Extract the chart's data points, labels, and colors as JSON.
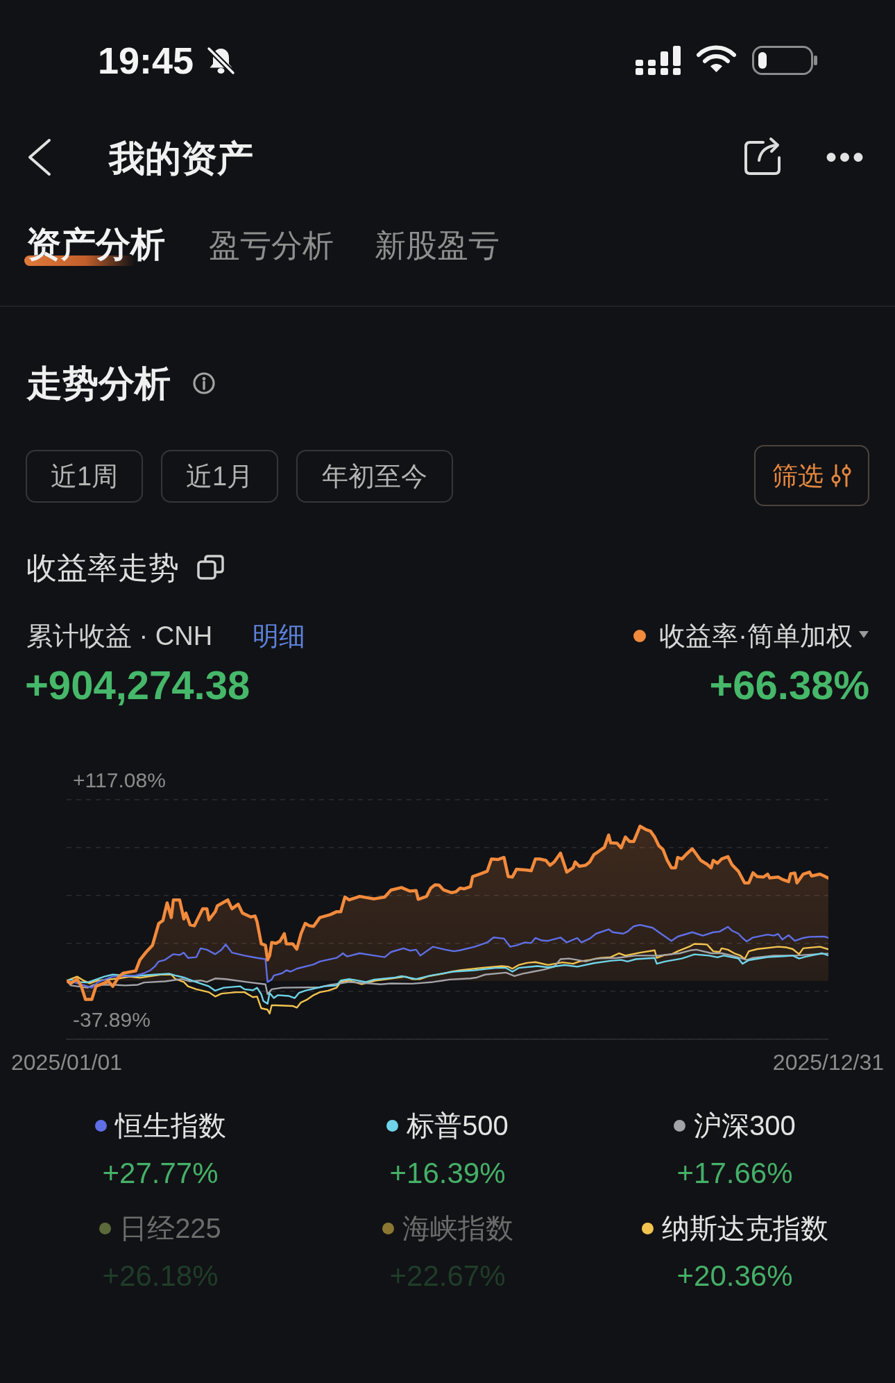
{
  "chart_data": {
    "type": "line",
    "title": "收益率走势",
    "annotations": [
      "19:45",
      "我的资产",
      "资产分析",
      "盈亏分析",
      "新股盈亏",
      "走势分析",
      "近1周",
      "近1月",
      "年初至今",
      "筛选",
      "累计收益 · CNH",
      "明细",
      "+904,274.38",
      "+66.38%",
      "+27.77%",
      "+16.39%",
      "+17.66%",
      "+26.18%",
      "+22.67%",
      "+20.36%"
    ],
    "legend": "bottom",
    "grid": "y",
    "xlim": [
      "2025-01-01",
      "2025-12-31"
    ],
    "xticks": [
      {
        "value": "2025-01-01",
        "label": "2025/01/01"
      },
      {
        "value": "2025-12-31",
        "label": "2025/12/31"
      }
    ],
    "ylim": [
      -37.89,
      117.08
    ],
    "yticks": [
      {
        "value": -37.89,
        "label": "-37.89%"
      },
      {
        "value": -6.9,
        "label": null
      },
      {
        "value": 24.1,
        "label": null
      },
      {
        "value": 55.09,
        "label": null
      },
      {
        "value": 86.09,
        "label": null
      },
      {
        "value": 117.08,
        "label": "+117.08%"
      }
    ],
    "series": [
      {
        "name": "收益率·简单加权",
        "type": "area",
        "color": "#f28a3c",
        "x": [
          "2025-01-01",
          "2025-01-03",
          "2025-01-06",
          "2025-01-08",
          "2025-01-10",
          "2025-01-13",
          "2025-01-15",
          "2025-01-21",
          "2025-01-23",
          "2025-01-26",
          "2025-01-28",
          "2025-02-03",
          "2025-02-05",
          "2025-02-08",
          "2025-02-11",
          "2025-02-14",
          "2025-02-16",
          "2025-02-18",
          "2025-02-20",
          "2025-02-21",
          "2025-02-24",
          "2025-02-26",
          "2025-02-27",
          "2025-03-01",
          "2025-03-03",
          "2025-03-07",
          "2025-03-09",
          "2025-03-10",
          "2025-03-13",
          "2025-03-14",
          "2025-03-19",
          "2025-03-21",
          "2025-03-24",
          "2025-03-26",
          "2025-03-30",
          "2025-04-01",
          "2025-04-02",
          "2025-04-04",
          "2025-04-06",
          "2025-04-07",
          "2025-04-08",
          "2025-04-09",
          "2025-04-11",
          "2025-04-13",
          "2025-04-15",
          "2025-04-16",
          "2025-04-19",
          "2025-04-21",
          "2025-04-23",
          "2025-04-25",
          "2025-04-27",
          "2025-04-29",
          "2025-05-02",
          "2025-05-07",
          "2025-05-10",
          "2025-05-12",
          "2025-05-14",
          "2025-05-16",
          "2025-05-21",
          "2025-05-28",
          "2025-06-02",
          "2025-06-05",
          "2025-06-10",
          "2025-06-14",
          "2025-06-17",
          "2025-06-18",
          "2025-06-22",
          "2025-06-24",
          "2025-06-26",
          "2025-06-28",
          "2025-06-30",
          "2025-07-04",
          "2025-07-06",
          "2025-07-08",
          "2025-07-10",
          "2025-07-13",
          "2025-07-14",
          "2025-07-18",
          "2025-07-21",
          "2025-07-23",
          "2025-07-26",
          "2025-07-29",
          "2025-07-31",
          "2025-08-02",
          "2025-08-04",
          "2025-08-09",
          "2025-08-11",
          "2025-08-13",
          "2025-08-15",
          "2025-08-18",
          "2025-08-20",
          "2025-08-22",
          "2025-08-25",
          "2025-08-28",
          "2025-08-31",
          "2025-09-01",
          "2025-09-03",
          "2025-09-06",
          "2025-09-08",
          "2025-09-10",
          "2025-09-12",
          "2025-09-15",
          "2025-09-17",
          "2025-09-18",
          "2025-09-21",
          "2025-09-23",
          "2025-09-25",
          "2025-09-27",
          "2025-09-29",
          "2025-10-02",
          "2025-10-05",
          "2025-10-07",
          "2025-10-09",
          "2025-10-11",
          "2025-10-13",
          "2025-10-15",
          "2025-10-17",
          "2025-10-19",
          "2025-10-20",
          "2025-10-22",
          "2025-10-24",
          "2025-10-27",
          "2025-10-29",
          "2025-10-31",
          "2025-11-03",
          "2025-11-05",
          "2025-11-06",
          "2025-11-08",
          "2025-11-10",
          "2025-11-13",
          "2025-11-15",
          "2025-11-18",
          "2025-11-21",
          "2025-11-23",
          "2025-11-25",
          "2025-11-27",
          "2025-11-30",
          "2025-12-02",
          "2025-12-03",
          "2025-12-07",
          "2025-12-09",
          "2025-12-12",
          "2025-12-13",
          "2025-12-15",
          "2025-12-16",
          "2025-12-19",
          "2025-12-22",
          "2025-12-23",
          "2025-12-27",
          "2025-12-29",
          "2025-12-31"
        ],
        "values": [
          0,
          -1.7,
          1.1,
          -3.6,
          -12.1,
          -12.1,
          -3.6,
          -0.4,
          -3.6,
          2.7,
          4.9,
          6.4,
          13.5,
          18.6,
          22.9,
          37.1,
          39.0,
          50.4,
          40.9,
          52.3,
          52.3,
          40.0,
          43.8,
          36.2,
          35.6,
          46.6,
          46.6,
          39.4,
          44.7,
          48.5,
          52.3,
          46.6,
          49.5,
          43.8,
          41.3,
          41.9,
          38.1,
          23.9,
          22.9,
          13.5,
          16.3,
          24.8,
          24.2,
          25.7,
          30.5,
          23.9,
          23.9,
          20.5,
          30.5,
          37.1,
          35.6,
          35.2,
          40.9,
          42.8,
          44.7,
          44.7,
          54.2,
          52.3,
          54.6,
          53.0,
          54.2,
          58.7,
          60.3,
          58.0,
          58.3,
          52.7,
          54.6,
          59.9,
          62.1,
          61.8,
          58.9,
          57.0,
          57.6,
          59.9,
          59.5,
          60.9,
          67.4,
          69.3,
          70.9,
          78.8,
          78.4,
          79.8,
          67.4,
          67.1,
          72.2,
          71.6,
          71.2,
          78.8,
          78.8,
          77.9,
          74.7,
          76.9,
          82.6,
          70.3,
          73.1,
          76.9,
          74.1,
          74.7,
          76.9,
          81.7,
          83.5,
          86.4,
          94.3,
          89.2,
          89.0,
          86.0,
          93.0,
          90.1,
          90.1,
          100.0,
          97.7,
          96.8,
          93.0,
          87.3,
          84.9,
          77.9,
          73.1,
          73.1,
          79.8,
          78.8,
          81.7,
          85.4,
          81.7,
          77.9,
          75.4,
          73.1,
          77.9,
          76.0,
          78.8,
          80.3,
          75.0,
          70.9,
          63.3,
          63.3,
          69.9,
          67.4,
          67.1,
          69.0,
          66.5,
          67.1,
          65.6,
          64.1,
          69.3,
          69.7,
          63.3,
          69.0,
          70.3,
          67.8,
          69.0,
          67.8,
          66.38
        ]
      },
      {
        "name": "恒生指数",
        "type": "line",
        "color": "#5f6fe6",
        "x": [
          "2025-01-01",
          "2025-01-04",
          "2025-01-13",
          "2025-01-16",
          "2025-01-23",
          "2025-02-03",
          "2025-02-07",
          "2025-02-10",
          "2025-02-12",
          "2025-02-14",
          "2025-02-17",
          "2025-02-21",
          "2025-02-24",
          "2025-02-26",
          "2025-02-28",
          "2025-03-04",
          "2025-03-06",
          "2025-03-09",
          "2025-03-13",
          "2025-03-16",
          "2025-03-18",
          "2025-03-21",
          "2025-03-27",
          "2025-04-02",
          "2025-04-06",
          "2025-04-07",
          "2025-04-09",
          "2025-04-10",
          "2025-04-14",
          "2025-04-16",
          "2025-04-18",
          "2025-04-21",
          "2025-04-29",
          "2025-05-02",
          "2025-05-10",
          "2025-05-12",
          "2025-05-13",
          "2025-05-15",
          "2025-05-21",
          "2025-05-28",
          "2025-06-02",
          "2025-06-05",
          "2025-06-11",
          "2025-06-14",
          "2025-06-17",
          "2025-06-19",
          "2025-06-25",
          "2025-07-01",
          "2025-07-05",
          "2025-07-08",
          "2025-07-15",
          "2025-07-21",
          "2025-07-24",
          "2025-07-29",
          "2025-08-01",
          "2025-08-04",
          "2025-08-08",
          "2025-08-11",
          "2025-08-13",
          "2025-08-16",
          "2025-08-19",
          "2025-08-25",
          "2025-08-28",
          "2025-09-02",
          "2025-09-04",
          "2025-09-08",
          "2025-09-11",
          "2025-09-13",
          "2025-09-17",
          "2025-09-19",
          "2025-09-24",
          "2025-09-26",
          "2025-09-29",
          "2025-10-02",
          "2025-10-05",
          "2025-10-08",
          "2025-10-11",
          "2025-10-15",
          "2025-10-17",
          "2025-10-20",
          "2025-10-27",
          "2025-10-29",
          "2025-11-01",
          "2025-11-06",
          "2025-11-09",
          "2025-11-13",
          "2025-11-15",
          "2025-11-18",
          "2025-11-20",
          "2025-11-22",
          "2025-11-25",
          "2025-12-02",
          "2025-12-05",
          "2025-12-07",
          "2025-12-09",
          "2025-12-12",
          "2025-12-15",
          "2025-12-19",
          "2025-12-22",
          "2025-12-29",
          "2025-12-31"
        ],
        "values": [
          0,
          -0.8,
          -4.5,
          -0.8,
          2.7,
          3.4,
          4.9,
          6.8,
          9.1,
          12.5,
          13.5,
          17.2,
          16.7,
          18.2,
          14.8,
          15.3,
          21.0,
          20.1,
          17.2,
          20.1,
          23.5,
          18.2,
          16.3,
          14.8,
          14.0,
          -0.8,
          0.8,
          3.4,
          4.9,
          6.8,
          5.9,
          7.8,
          10.6,
          12.5,
          14.8,
          16.7,
          17.8,
          15.7,
          17.8,
          16.3,
          15.3,
          18.6,
          21.0,
          19.5,
          20.1,
          16.3,
          22.0,
          20.1,
          19.1,
          19.7,
          22.0,
          24.8,
          28.0,
          27.3,
          22.0,
          22.9,
          24.8,
          24.4,
          27.7,
          26.1,
          25.8,
          28.0,
          24.8,
          27.7,
          24.8,
          27.3,
          30.5,
          31.4,
          33.3,
          31.4,
          30.5,
          31.8,
          35.2,
          36.2,
          35.2,
          34.3,
          31.4,
          27.7,
          25.8,
          28.6,
          31.4,
          30.5,
          29.2,
          31.4,
          31.8,
          34.9,
          32.4,
          30.5,
          27.7,
          25.4,
          28.0,
          29.9,
          29.2,
          30.3,
          26.7,
          29.5,
          25.8,
          27.7,
          28.4,
          28.6,
          27.77
        ]
      },
      {
        "name": "标普500",
        "type": "line",
        "color": "#6fd4e8",
        "x": [
          "2025-01-01",
          "2025-01-03",
          "2025-01-07",
          "2025-01-11",
          "2025-01-15",
          "2025-01-19",
          "2025-01-23",
          "2025-02-02",
          "2025-02-12",
          "2025-02-19",
          "2025-02-22",
          "2025-02-26",
          "2025-03-03",
          "2025-03-07",
          "2025-03-10",
          "2025-03-13",
          "2025-03-17",
          "2025-03-25",
          "2025-03-27",
          "2025-03-31",
          "2025-04-02",
          "2025-04-04",
          "2025-04-05",
          "2025-04-07",
          "2025-04-08",
          "2025-04-10",
          "2025-04-12",
          "2025-04-17",
          "2025-04-20",
          "2025-04-22",
          "2025-04-25",
          "2025-05-04",
          "2025-05-10",
          "2025-05-12",
          "2025-05-16",
          "2025-05-24",
          "2025-05-28",
          "2025-06-07",
          "2025-06-10",
          "2025-06-17",
          "2025-06-24",
          "2025-07-02",
          "2025-07-05",
          "2025-07-15",
          "2025-07-25",
          "2025-07-30",
          "2025-08-02",
          "2025-08-05",
          "2025-08-14",
          "2025-08-19",
          "2025-08-27",
          "2025-09-02",
          "2025-09-10",
          "2025-09-18",
          "2025-09-23",
          "2025-09-26",
          "2025-09-30",
          "2025-10-09",
          "2025-10-10",
          "2025-10-14",
          "2025-10-22",
          "2025-10-28",
          "2025-11-04",
          "2025-11-08",
          "2025-11-11",
          "2025-11-18",
          "2025-11-20",
          "2025-11-23",
          "2025-12-02",
          "2025-12-10",
          "2025-12-14",
          "2025-12-17",
          "2025-12-20",
          "2025-12-28",
          "2025-12-31"
        ],
        "values": [
          0,
          0.8,
          -0.8,
          -1.1,
          0.8,
          2.7,
          4.0,
          3.0,
          4.0,
          4.6,
          3.4,
          2.1,
          -0.4,
          -2.2,
          -3.6,
          -6.4,
          -4.5,
          -3.6,
          -5.5,
          -6.1,
          -4.5,
          -8.7,
          -13.1,
          -14.9,
          -7.9,
          -11.2,
          -9.3,
          -9.8,
          -11.2,
          -7.9,
          -6.4,
          -3.6,
          -3.0,
          0.2,
          1.1,
          -0.8,
          0.8,
          2.1,
          3.0,
          1.1,
          3.4,
          5.3,
          5.9,
          6.8,
          8.3,
          8.3,
          5.9,
          8.3,
          9.5,
          8.7,
          10.2,
          9.1,
          11.4,
          12.9,
          13.5,
          12.5,
          14.0,
          14.8,
          11.0,
          12.5,
          14.4,
          17.1,
          16.3,
          15.2,
          16.3,
          14.4,
          11.0,
          13.3,
          15.3,
          15.9,
          16.3,
          14.4,
          15.5,
          17.8,
          16.39
        ]
      },
      {
        "name": "沪深300",
        "type": "line",
        "color": "#a3a3a8",
        "x": [
          "2025-01-01",
          "2025-01-03",
          "2025-01-11",
          "2025-01-14",
          "2025-01-24",
          "2025-01-29",
          "2025-02-04",
          "2025-02-07",
          "2025-02-17",
          "2025-02-25",
          "2025-03-01",
          "2025-03-06",
          "2025-03-09",
          "2025-03-13",
          "2025-03-18",
          "2025-03-28",
          "2025-04-06",
          "2025-04-07",
          "2025-04-09",
          "2025-04-14",
          "2025-05-02",
          "2025-05-07",
          "2025-05-12",
          "2025-05-16",
          "2025-05-26",
          "2025-05-31",
          "2025-06-05",
          "2025-06-15",
          "2025-06-25",
          "2025-06-30",
          "2025-07-03",
          "2025-07-13",
          "2025-07-16",
          "2025-07-20",
          "2025-07-30",
          "2025-08-03",
          "2025-08-07",
          "2025-08-12",
          "2025-08-17",
          "2025-08-22",
          "2025-08-25",
          "2025-08-29",
          "2025-09-02",
          "2025-09-06",
          "2025-09-11",
          "2025-09-21",
          "2025-09-30",
          "2025-10-11",
          "2025-10-21",
          "2025-10-26",
          "2025-10-29",
          "2025-11-05",
          "2025-11-10",
          "2025-11-15",
          "2025-11-22",
          "2025-11-25",
          "2025-12-05",
          "2025-12-15",
          "2025-12-25",
          "2025-12-31"
        ],
        "values": [
          0,
          -3.0,
          -4.5,
          -2.6,
          -2.6,
          -3.0,
          -2.6,
          -1.1,
          -0.4,
          1.1,
          -0.4,
          0.2,
          -0.8,
          1.5,
          1.1,
          -0.8,
          -2.3,
          -8.7,
          -5.5,
          -4.5,
          -4.2,
          -2.6,
          -1.7,
          -0.8,
          -1.7,
          -2.3,
          -1.7,
          -1.9,
          -0.8,
          0.2,
          0.8,
          1.5,
          2.1,
          4.0,
          5.3,
          3.0,
          4.6,
          5.9,
          7.2,
          9.1,
          14.0,
          14.4,
          13.5,
          12.5,
          14.4,
          14.8,
          16.3,
          16.3,
          17.8,
          19.7,
          20.1,
          17.8,
          17.8,
          16.3,
          13.5,
          14.8,
          16.3,
          16.3,
          17.2,
          17.66
        ]
      },
      {
        "name": "日经225",
        "type": "line",
        "color": "#5b6a3a"
      },
      {
        "name": "海峡指数",
        "type": "line",
        "color": "#8c7732"
      },
      {
        "name": "纳斯达克指数",
        "type": "line",
        "color": "#f2c34f",
        "x": [
          "2025-01-01",
          "2025-01-03",
          "2025-01-06",
          "2025-01-09",
          "2025-01-12",
          "2025-01-16",
          "2025-01-26",
          "2025-01-31",
          "2025-02-05",
          "2025-02-15",
          "2025-02-20",
          "2025-02-22",
          "2025-02-26",
          "2025-02-28",
          "2025-03-04",
          "2025-03-10",
          "2025-03-13",
          "2025-03-16",
          "2025-03-23",
          "2025-03-27",
          "2025-03-31",
          "2025-04-02",
          "2025-04-04",
          "2025-04-07",
          "2025-04-08",
          "2025-04-09",
          "2025-04-11",
          "2025-04-19",
          "2025-04-21",
          "2025-04-23",
          "2025-04-26",
          "2025-04-29",
          "2025-05-02",
          "2025-05-06",
          "2025-05-10",
          "2025-05-12",
          "2025-05-16",
          "2025-05-22",
          "2025-05-29",
          "2025-06-03",
          "2025-06-12",
          "2025-06-15",
          "2025-06-19",
          "2025-06-23",
          "2025-06-30",
          "2025-07-04",
          "2025-07-08",
          "2025-07-18",
          "2025-07-28",
          "2025-07-31",
          "2025-08-02",
          "2025-08-05",
          "2025-08-09",
          "2025-08-13",
          "2025-08-19",
          "2025-08-26",
          "2025-08-31",
          "2025-09-03",
          "2025-09-08",
          "2025-09-13",
          "2025-09-18",
          "2025-09-22",
          "2025-09-25",
          "2025-10-02",
          "2025-10-09",
          "2025-10-10",
          "2025-10-14",
          "2025-10-17",
          "2025-10-20",
          "2025-10-26",
          "2025-10-28",
          "2025-11-03",
          "2025-11-06",
          "2025-11-09",
          "2025-11-10",
          "2025-11-13",
          "2025-11-16",
          "2025-11-19",
          "2025-11-21",
          "2025-11-23",
          "2025-11-27",
          "2025-12-07",
          "2025-12-11",
          "2025-12-14",
          "2025-12-17",
          "2025-12-19",
          "2025-12-27",
          "2025-12-31"
        ],
        "values": [
          0,
          1.1,
          2.7,
          0.2,
          -1.7,
          0.2,
          1.5,
          2.7,
          1.9,
          4.0,
          4.0,
          1.1,
          -0.8,
          -3.6,
          -5.5,
          -7.4,
          -10.2,
          -8.3,
          -7.4,
          -7.4,
          -10.6,
          -10.2,
          -17.8,
          -18.7,
          -21.2,
          -15.9,
          -15.9,
          -16.3,
          -17.4,
          -14.0,
          -12.1,
          -9.3,
          -7.4,
          -6.4,
          -4.5,
          -0.8,
          0.2,
          -2.2,
          0.2,
          1.1,
          2.7,
          1.1,
          1.1,
          3.0,
          4.6,
          5.9,
          6.8,
          8.3,
          9.5,
          9.1,
          7.8,
          10.2,
          11.6,
          12.1,
          10.2,
          11.9,
          11.0,
          12.5,
          13.5,
          14.8,
          15.3,
          17.8,
          16.3,
          18.2,
          19.7,
          14.8,
          16.7,
          17.1,
          19.1,
          22.4,
          23.9,
          23.5,
          19.1,
          18.6,
          21.0,
          20.1,
          17.8,
          16.3,
          14.0,
          19.1,
          20.5,
          22.0,
          21.6,
          20.5,
          17.2,
          21.0,
          22.0,
          20.36
        ]
      }
    ]
  }
}
